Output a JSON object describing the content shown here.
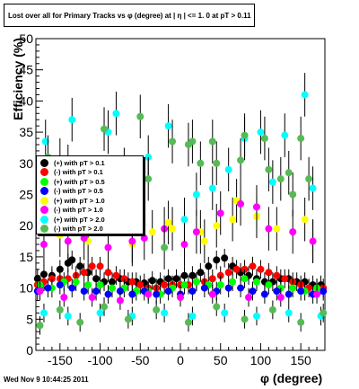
{
  "chart_data": {
    "type": "scatter",
    "title": "Lost over all for Primary Tracks vs φ (degree) at | η | <= 1. 0 at pT > 0.11",
    "xlabel": "φ (degree)",
    "ylabel": "Efficiency (%)",
    "xlim": [
      -180,
      180
    ],
    "ylim": [
      0,
      50
    ],
    "x_ticks": [
      "-150",
      "-100",
      "-50",
      "0",
      "50",
      "100",
      "150"
    ],
    "y_ticks": [
      "0",
      "5",
      "10",
      "15",
      "20",
      "25",
      "30",
      "35",
      "40",
      "45",
      "50"
    ],
    "legend_position": "left-middle",
    "series": [
      {
        "name": "(+) with pT > 0.1",
        "color": "#000000",
        "points": [
          [
            -178,
            11.5
          ],
          [
            -170,
            12.2
          ],
          [
            -160,
            12.0
          ],
          [
            -150,
            13.0
          ],
          [
            -140,
            14.0
          ],
          [
            -135,
            14.5
          ],
          [
            -125,
            13.5
          ],
          [
            -115,
            12.5
          ],
          [
            -105,
            11.5
          ],
          [
            -95,
            11.0
          ],
          [
            -85,
            11.0
          ],
          [
            -75,
            11.5
          ],
          [
            -65,
            11.0
          ],
          [
            -55,
            11.0
          ],
          [
            -45,
            10.8
          ],
          [
            -35,
            11.2
          ],
          [
            -25,
            11.0
          ],
          [
            -15,
            11.5
          ],
          [
            -5,
            11.5
          ],
          [
            5,
            12.0
          ],
          [
            15,
            12.0
          ],
          [
            25,
            12.5
          ],
          [
            35,
            13.5
          ],
          [
            45,
            14.5
          ],
          [
            55,
            14.8
          ],
          [
            65,
            13.5
          ],
          [
            75,
            12.5
          ],
          [
            85,
            12.0
          ],
          [
            95,
            11.5
          ],
          [
            105,
            11.0
          ],
          [
            115,
            11.0
          ],
          [
            125,
            11.5
          ],
          [
            135,
            11.5
          ],
          [
            145,
            11.0
          ],
          [
            155,
            11.0
          ],
          [
            165,
            10.5
          ],
          [
            175,
            10.5
          ]
        ]
      },
      {
        "name": "(-) with pT > 0.1",
        "color": "#ff0000",
        "points": [
          [
            -178,
            10.5
          ],
          [
            -170,
            11.0
          ],
          [
            -160,
            11.5
          ],
          [
            -150,
            11.5
          ],
          [
            -140,
            11.5
          ],
          [
            -130,
            12.0
          ],
          [
            -120,
            12.5
          ],
          [
            -110,
            13.5
          ],
          [
            -100,
            13.5
          ],
          [
            -90,
            12.5
          ],
          [
            -80,
            12.0
          ],
          [
            -70,
            11.5
          ],
          [
            -60,
            11.0
          ],
          [
            -50,
            10.5
          ],
          [
            -40,
            10.0
          ],
          [
            -30,
            10.0
          ],
          [
            -20,
            10.5
          ],
          [
            -10,
            10.5
          ],
          [
            0,
            10.5
          ],
          [
            10,
            10.5
          ],
          [
            20,
            11.0
          ],
          [
            30,
            11.0
          ],
          [
            40,
            11.5
          ],
          [
            50,
            12.0
          ],
          [
            60,
            12.5
          ],
          [
            70,
            13.0
          ],
          [
            80,
            13.0
          ],
          [
            90,
            13.5
          ],
          [
            100,
            13.0
          ],
          [
            110,
            12.5
          ],
          [
            120,
            12.0
          ],
          [
            130,
            11.5
          ],
          [
            140,
            11.0
          ],
          [
            150,
            10.5
          ],
          [
            160,
            10.0
          ],
          [
            170,
            10.0
          ],
          [
            178,
            10.0
          ]
        ]
      },
      {
        "name": "(+) with pT > 0.5",
        "color": "#00ff00",
        "points": [
          [
            -175,
            10.5
          ],
          [
            -160,
            10.0
          ],
          [
            -145,
            11.0
          ],
          [
            -130,
            11.0
          ],
          [
            -115,
            10.5
          ],
          [
            -100,
            10.5
          ],
          [
            -85,
            10.0
          ],
          [
            -70,
            10.0
          ],
          [
            -55,
            9.5
          ],
          [
            -40,
            9.5
          ],
          [
            -25,
            9.0
          ],
          [
            -10,
            10.0
          ],
          [
            5,
            10.5
          ],
          [
            20,
            11.0
          ],
          [
            35,
            10.5
          ],
          [
            50,
            10.5
          ],
          [
            65,
            11.0
          ],
          [
            80,
            11.5
          ],
          [
            95,
            11.0
          ],
          [
            110,
            10.5
          ],
          [
            125,
            10.0
          ],
          [
            140,
            10.0
          ],
          [
            155,
            9.5
          ],
          [
            170,
            10.0
          ]
        ]
      },
      {
        "name": "(-) with pT > 0.5",
        "color": "#0000ff",
        "points": [
          [
            -178,
            9.5
          ],
          [
            -165,
            10.0
          ],
          [
            -150,
            10.5
          ],
          [
            -135,
            10.0
          ],
          [
            -120,
            9.5
          ],
          [
            -105,
            9.5
          ],
          [
            -90,
            9.0
          ],
          [
            -75,
            9.5
          ],
          [
            -60,
            9.0
          ],
          [
            -45,
            9.5
          ],
          [
            -30,
            9.0
          ],
          [
            -15,
            9.5
          ],
          [
            0,
            9.0
          ],
          [
            15,
            9.5
          ],
          [
            30,
            10.0
          ],
          [
            45,
            9.5
          ],
          [
            60,
            10.0
          ],
          [
            75,
            10.0
          ],
          [
            90,
            9.5
          ],
          [
            105,
            9.0
          ],
          [
            120,
            9.5
          ],
          [
            135,
            9.0
          ],
          [
            150,
            9.5
          ],
          [
            165,
            9.0
          ],
          [
            178,
            9.5
          ]
        ]
      },
      {
        "name": "(+) with pT > 1.0",
        "color": "#ffff00",
        "points": [
          [
            -150,
            18.5
          ],
          [
            -115,
            17.5
          ],
          [
            -60,
            17.0
          ],
          [
            -35,
            19.0
          ],
          [
            -15,
            20.5
          ],
          [
            -10,
            19.5
          ],
          [
            25,
            19.0
          ],
          [
            30,
            17.5
          ],
          [
            45,
            20.0
          ],
          [
            65,
            21.0
          ],
          [
            70,
            24.0
          ],
          [
            95,
            21.5
          ],
          [
            120,
            19.5
          ],
          [
            155,
            21.0
          ],
          [
            165,
            17.5
          ]
        ]
      },
      {
        "name": "(-) with pT > 1.0",
        "color": "#ff00ff",
        "points": [
          [
            -170,
            17.0
          ],
          [
            -140,
            17.5
          ],
          [
            -120,
            18.0
          ],
          [
            -90,
            16.5
          ],
          [
            -60,
            17.5
          ],
          [
            -45,
            18.0
          ],
          [
            -20,
            19.5
          ],
          [
            5,
            17.0
          ],
          [
            20,
            19.0
          ],
          [
            50,
            22.0
          ],
          [
            75,
            23.5
          ],
          [
            95,
            23.0
          ],
          [
            110,
            19.5
          ],
          [
            140,
            19.0
          ],
          [
            165,
            17.5
          ],
          [
            -175,
            9.5
          ],
          [
            -145,
            8.5
          ],
          [
            -110,
            8.5
          ],
          [
            -75,
            8.0
          ],
          [
            -40,
            9.0
          ],
          [
            0,
            8.5
          ],
          [
            40,
            9.0
          ],
          [
            85,
            8.5
          ],
          [
            125,
            8.5
          ],
          [
            170,
            9.0
          ]
        ]
      },
      {
        "name": "(+) with pT > 2.0",
        "color": "#00ffff",
        "points": [
          [
            -168,
            33.5
          ],
          [
            -150,
            30.5
          ],
          [
            -135,
            37.0
          ],
          [
            -90,
            35.0
          ],
          [
            -80,
            38.0
          ],
          [
            -40,
            31.0
          ],
          [
            -15,
            36.0
          ],
          [
            5,
            21.0
          ],
          [
            20,
            25.0
          ],
          [
            40,
            26.0
          ],
          [
            60,
            29.0
          ],
          [
            80,
            34.0
          ],
          [
            100,
            35.0
          ],
          [
            115,
            27.0
          ],
          [
            130,
            34.5
          ],
          [
            155,
            41.0
          ],
          [
            165,
            26.0
          ],
          [
            -170,
            6.0
          ],
          [
            -140,
            5.5
          ],
          [
            -100,
            6.0
          ],
          [
            -60,
            5.5
          ],
          [
            -20,
            6.0
          ],
          [
            15,
            5.5
          ],
          [
            55,
            6.0
          ],
          [
            95,
            5.5
          ],
          [
            135,
            6.0
          ],
          [
            175,
            5.5
          ]
        ]
      },
      {
        "name": "(-) with pT > 2.0",
        "color": "#55bb55",
        "points": [
          [
            -165,
            31.0
          ],
          [
            -140,
            29.5
          ],
          [
            -120,
            27.0
          ],
          [
            -105,
            25.5
          ],
          [
            -95,
            35.5
          ],
          [
            -70,
            29.0
          ],
          [
            -50,
            37.5
          ],
          [
            -40,
            27.5
          ],
          [
            -20,
            16.5
          ],
          [
            -10,
            33.5
          ],
          [
            10,
            33.0
          ],
          [
            15,
            33.5
          ],
          [
            25,
            30.0
          ],
          [
            40,
            33.5
          ],
          [
            45,
            30.0
          ],
          [
            75,
            30.5
          ],
          [
            80,
            34.5
          ],
          [
            105,
            34.0
          ],
          [
            110,
            29.0
          ],
          [
            125,
            27.5
          ],
          [
            135,
            28.5
          ],
          [
            140,
            25.0
          ],
          [
            150,
            34.0
          ],
          [
            160,
            27.5
          ],
          [
            -175,
            4.0
          ],
          [
            -150,
            6.5
          ],
          [
            -125,
            4.5
          ],
          [
            -95,
            7.0
          ],
          [
            -65,
            5.0
          ],
          [
            -30,
            6.5
          ],
          [
            10,
            4.5
          ],
          [
            45,
            7.0
          ],
          [
            80,
            5.0
          ],
          [
            115,
            6.5
          ],
          [
            150,
            4.5
          ],
          [
            178,
            6.0
          ]
        ]
      }
    ]
  },
  "footer_text": "Wed Nov  9 10:44:25 2011"
}
